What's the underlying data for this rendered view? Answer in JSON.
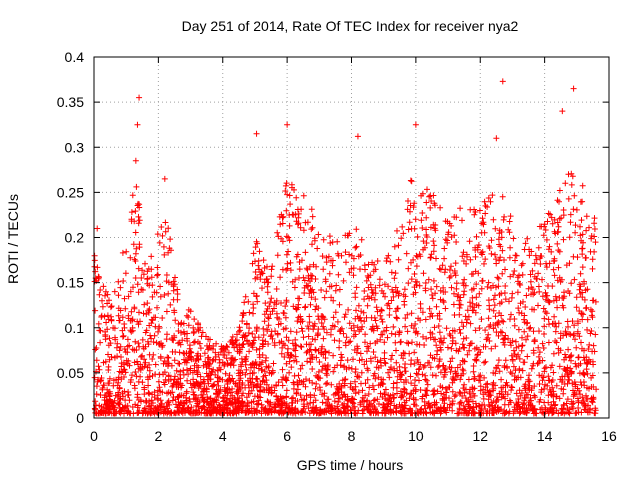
{
  "chart_data": {
    "type": "scatter",
    "title": "Day 251 of 2014, Rate Of TEC Index for receiver nya2",
    "xlabel": "GPS time / hours",
    "ylabel": "ROTI / TECUs",
    "xlim": [
      0,
      16
    ],
    "ylim": [
      0,
      0.4
    ],
    "x_ticks": [
      0,
      2,
      4,
      6,
      8,
      10,
      12,
      14,
      16
    ],
    "x_tick_labels": [
      "0",
      "2",
      "4",
      "6",
      "8",
      "10",
      "12",
      "14",
      "16"
    ],
    "y_ticks": [
      0,
      0.05,
      0.1,
      0.15,
      0.2,
      0.25,
      0.3,
      0.35,
      0.4
    ],
    "y_tick_labels": [
      "0",
      "0.05",
      "0.1",
      "0.15",
      "0.2",
      "0.25",
      "0.3",
      "0.35",
      "0.4"
    ],
    "grid": true,
    "marker": "+",
    "marker_color": "#ff0000",
    "series": [
      {
        "name": "ROTI",
        "x_range": [
          0,
          15.6
        ],
        "notable_points": [
          {
            "x": 1.4,
            "y": 0.355
          },
          {
            "x": 1.35,
            "y": 0.325
          },
          {
            "x": 1.3,
            "y": 0.285
          },
          {
            "x": 2.2,
            "y": 0.265
          },
          {
            "x": 5.05,
            "y": 0.315
          },
          {
            "x": 6.0,
            "y": 0.325
          },
          {
            "x": 8.2,
            "y": 0.312
          },
          {
            "x": 10.0,
            "y": 0.325
          },
          {
            "x": 12.5,
            "y": 0.31
          },
          {
            "x": 12.7,
            "y": 0.373
          },
          {
            "x": 14.9,
            "y": 0.365
          },
          {
            "x": 14.55,
            "y": 0.34
          },
          {
            "x": 0.1,
            "y": 0.21
          }
        ],
        "envelope": [
          {
            "t": 0.0,
            "hi": 0.19
          },
          {
            "t": 0.5,
            "hi": 0.13
          },
          {
            "t": 1.0,
            "hi": 0.2
          },
          {
            "t": 1.3,
            "hi": 0.27
          },
          {
            "t": 1.7,
            "hi": 0.18
          },
          {
            "t": 2.2,
            "hi": 0.24
          },
          {
            "t": 2.6,
            "hi": 0.14
          },
          {
            "t": 3.0,
            "hi": 0.12
          },
          {
            "t": 3.5,
            "hi": 0.09
          },
          {
            "t": 4.0,
            "hi": 0.08
          },
          {
            "t": 4.5,
            "hi": 0.1
          },
          {
            "t": 5.0,
            "hi": 0.2
          },
          {
            "t": 5.5,
            "hi": 0.17
          },
          {
            "t": 6.0,
            "hi": 0.27
          },
          {
            "t": 6.5,
            "hi": 0.25
          },
          {
            "t": 7.0,
            "hi": 0.22
          },
          {
            "t": 7.5,
            "hi": 0.2
          },
          {
            "t": 8.0,
            "hi": 0.22
          },
          {
            "t": 8.5,
            "hi": 0.19
          },
          {
            "t": 9.0,
            "hi": 0.17
          },
          {
            "t": 9.5,
            "hi": 0.22
          },
          {
            "t": 10.0,
            "hi": 0.29
          },
          {
            "t": 10.5,
            "hi": 0.25
          },
          {
            "t": 11.0,
            "hi": 0.22
          },
          {
            "t": 11.5,
            "hi": 0.24
          },
          {
            "t": 12.0,
            "hi": 0.23
          },
          {
            "t": 12.5,
            "hi": 0.27
          },
          {
            "t": 13.0,
            "hi": 0.22
          },
          {
            "t": 13.5,
            "hi": 0.2
          },
          {
            "t": 14.0,
            "hi": 0.22
          },
          {
            "t": 14.5,
            "hi": 0.26
          },
          {
            "t": 15.0,
            "hi": 0.29
          },
          {
            "t": 15.6,
            "hi": 0.22
          }
        ],
        "baseline_min": 0.005
      }
    ]
  }
}
